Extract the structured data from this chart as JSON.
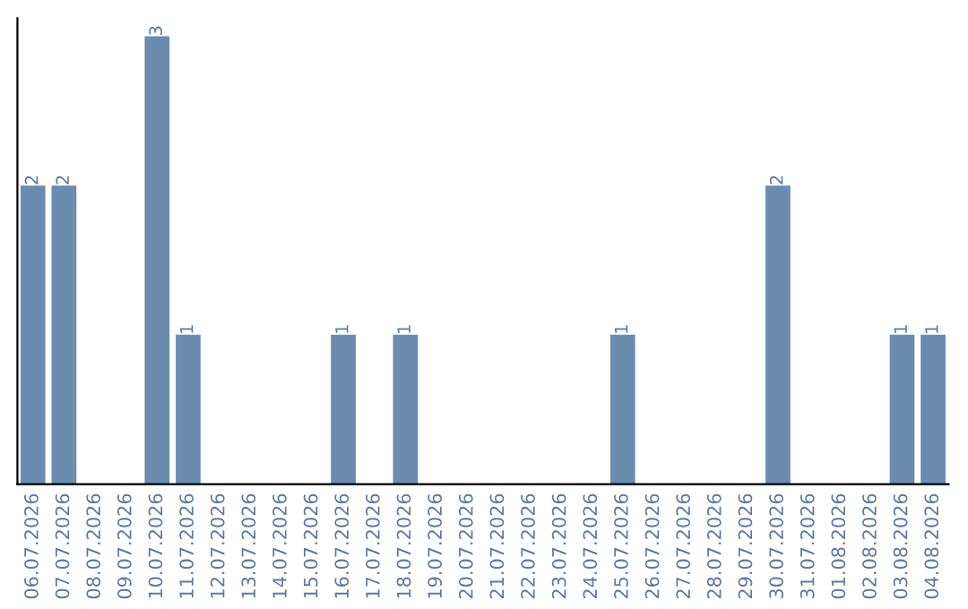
{
  "chart_data": {
    "type": "bar",
    "categories": [
      "06.07.2026",
      "07.07.2026",
      "08.07.2026",
      "09.07.2026",
      "10.07.2026",
      "11.07.2026",
      "12.07.2026",
      "13.07.2026",
      "14.07.2026",
      "15.07.2026",
      "16.07.2026",
      "17.07.2026",
      "18.07.2026",
      "19.07.2026",
      "20.07.2026",
      "21.07.2026",
      "22.07.2026",
      "23.07.2026",
      "24.07.2026",
      "25.07.2026",
      "26.07.2026",
      "27.07.2026",
      "28.07.2026",
      "29.07.2026",
      "30.07.2026",
      "31.07.2026",
      "01.08.2026",
      "02.08.2026",
      "03.08.2026",
      "04.08.2026"
    ],
    "values": [
      2,
      2,
      0,
      0,
      3,
      1,
      0,
      0,
      0,
      0,
      1,
      0,
      1,
      0,
      0,
      0,
      0,
      0,
      0,
      1,
      0,
      0,
      0,
      0,
      2,
      0,
      0,
      0,
      1,
      1
    ],
    "value_labels": [
      "2",
      "2",
      null,
      null,
      "3",
      "1",
      null,
      null,
      null,
      null,
      "1",
      null,
      "1",
      null,
      null,
      null,
      null,
      null,
      null,
      "1",
      null,
      null,
      null,
      null,
      "2",
      null,
      null,
      null,
      "1",
      "1"
    ],
    "color": "#6b8cae",
    "grid": false,
    "legend": false,
    "tick_labels": "x"
  }
}
